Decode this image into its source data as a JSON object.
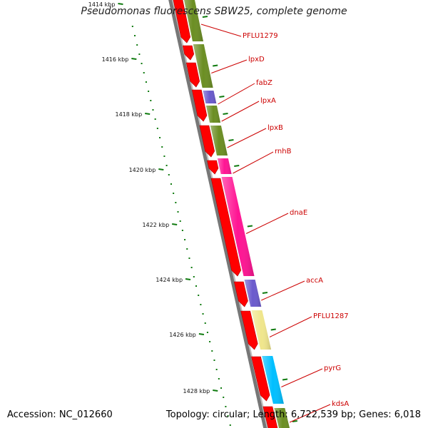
{
  "map": {
    "title": "Pseudomonas fluorescens SBW25, complete genome",
    "accession_label": "Accession: NC_012660",
    "summary_label": "Topology: circular; Length: 6,722,539 bp; Genes: 6,018"
  },
  "ruler": {
    "tick_labels": [
      "1414 kbp",
      "1416 kbp",
      "1418 kbp",
      "1420 kbp",
      "1422 kbp",
      "1424 kbp",
      "1426 kbp",
      "1428 kbp"
    ],
    "tick_color": "#0f7a0f"
  },
  "colors": {
    "backbone": "#777777",
    "forward_cds": "#ff0000",
    "label_text": "#cc0000",
    "label_line": "#cc0000"
  },
  "genes": [
    {
      "label": "PFLU1279",
      "color": "#6b8e23"
    },
    {
      "label": "lpxD",
      "color": "#6b8e23"
    },
    {
      "label": "fabZ",
      "color": "#6a5acd"
    },
    {
      "label": "lpxA",
      "color": "#6b8e23"
    },
    {
      "label": "lpxB",
      "color": "#6b8e23"
    },
    {
      "label": "rnhB",
      "color": "#ff1493"
    },
    {
      "label": "dnaE",
      "color": "#ff1493"
    },
    {
      "label": "accA",
      "color": "#6a5acd"
    },
    {
      "label": "PFLU1287",
      "color": "#f0e68c"
    },
    {
      "label": "pyrG",
      "color": "#00bfff"
    },
    {
      "label": "kdsA",
      "color": "#6b8e23"
    }
  ]
}
